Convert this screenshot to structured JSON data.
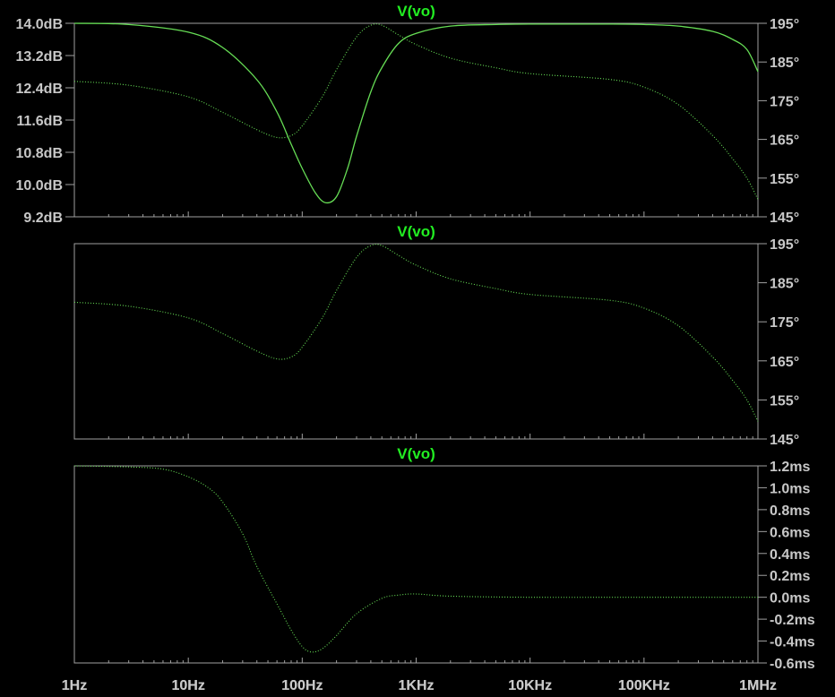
{
  "colors": {
    "background": "#000000",
    "trace": "#66dd55",
    "title": "#22ee22",
    "axis": "#a0a0a0",
    "text": "#c8c8c8"
  },
  "chart_data": [
    {
      "type": "line",
      "title": "V(vo)",
      "x_scale": "log",
      "xlim": [
        1,
        1000000
      ],
      "x_tick_labels": [
        "1Hz",
        "10Hz",
        "100Hz",
        "1KHz",
        "10KHz",
        "100KHz",
        "1MHz"
      ],
      "left_axis": {
        "unit": "dB",
        "ylim": [
          9.2,
          14.0
        ],
        "tick_labels": [
          "14.0dB",
          "13.2dB",
          "12.4dB",
          "11.6dB",
          "10.8dB",
          "10.0dB",
          "9.2dB"
        ]
      },
      "right_axis": {
        "unit": "deg",
        "ylim": [
          145,
          195
        ],
        "tick_labels": [
          "195°",
          "185°",
          "175°",
          "165°",
          "155°",
          "145°"
        ]
      },
      "series": [
        {
          "style": "solid",
          "axis": "left",
          "x": [
            1,
            3,
            10,
            20,
            40,
            60,
            80,
            100,
            130,
            160,
            200,
            250,
            300,
            400,
            500,
            700,
            1000,
            2000,
            5000,
            10000,
            50000,
            100000,
            200000,
            400000,
            600000,
            800000,
            1000000
          ],
          "y": [
            14.0,
            13.97,
            13.78,
            13.4,
            12.6,
            11.8,
            11.0,
            10.4,
            9.8,
            9.55,
            9.7,
            10.4,
            11.2,
            12.3,
            12.9,
            13.5,
            13.75,
            13.93,
            13.97,
            13.98,
            13.98,
            13.97,
            13.93,
            13.8,
            13.6,
            13.35,
            12.8
          ]
        },
        {
          "style": "dotted",
          "axis": "right",
          "x": [
            1,
            3,
            10,
            20,
            40,
            60,
            80,
            100,
            150,
            200,
            300,
            400,
            500,
            700,
            1000,
            2000,
            5000,
            10000,
            50000,
            100000,
            200000,
            400000,
            600000,
            800000,
            1000000
          ],
          "y": [
            180.0,
            179.0,
            176.0,
            172.0,
            167.5,
            165.5,
            166.0,
            168.5,
            176.0,
            183.0,
            191.5,
            194.5,
            194.5,
            192.0,
            189.5,
            186.0,
            183.5,
            182.0,
            180.5,
            178.5,
            174.0,
            166.0,
            160.0,
            155.0,
            149.5
          ]
        }
      ]
    },
    {
      "type": "line",
      "title": "V(vo)",
      "x_scale": "log",
      "xlim": [
        1,
        1000000
      ],
      "right_axis": {
        "unit": "deg",
        "ylim": [
          145,
          195
        ],
        "tick_labels": [
          "195°",
          "185°",
          "175°",
          "165°",
          "155°",
          "145°"
        ]
      },
      "series": [
        {
          "style": "dotted",
          "axis": "right",
          "x": [
            1,
            3,
            10,
            20,
            40,
            60,
            80,
            100,
            150,
            200,
            300,
            400,
            500,
            700,
            1000,
            2000,
            5000,
            10000,
            50000,
            100000,
            200000,
            400000,
            600000,
            800000,
            1000000
          ],
          "y": [
            180.0,
            179.0,
            176.0,
            172.0,
            167.5,
            165.5,
            166.0,
            168.5,
            176.0,
            183.0,
            191.5,
            194.5,
            194.5,
            192.0,
            189.5,
            186.0,
            183.5,
            182.0,
            180.5,
            178.5,
            174.0,
            166.0,
            160.0,
            155.0,
            149.5
          ]
        }
      ]
    },
    {
      "type": "line",
      "title": "V(vo)",
      "x_scale": "log",
      "xlim": [
        1,
        1000000
      ],
      "x_tick_labels": [
        "1Hz",
        "10Hz",
        "100Hz",
        "1KHz",
        "10KHz",
        "100KHz",
        "1MHz"
      ],
      "right_axis": {
        "unit": "ms",
        "ylim": [
          -0.6,
          1.2
        ],
        "tick_labels": [
          "1.2ms",
          "1.0ms",
          "0.8ms",
          "0.6ms",
          "0.4ms",
          "0.2ms",
          "0.0ms",
          "-0.2ms",
          "-0.4ms",
          "-0.6ms"
        ]
      },
      "series": [
        {
          "style": "dotted",
          "axis": "right",
          "x": [
            1,
            3,
            6,
            10,
            15,
            20,
            30,
            40,
            60,
            80,
            100,
            120,
            150,
            200,
            300,
            500,
            700,
            1000,
            2000,
            10000,
            100000,
            1000000
          ],
          "y": [
            1.2,
            1.19,
            1.17,
            1.1,
            1.0,
            0.87,
            0.58,
            0.28,
            -0.06,
            -0.3,
            -0.45,
            -0.5,
            -0.47,
            -0.35,
            -0.15,
            -0.01,
            0.02,
            0.03,
            0.01,
            0.0,
            0.0,
            0.0
          ]
        }
      ]
    }
  ]
}
